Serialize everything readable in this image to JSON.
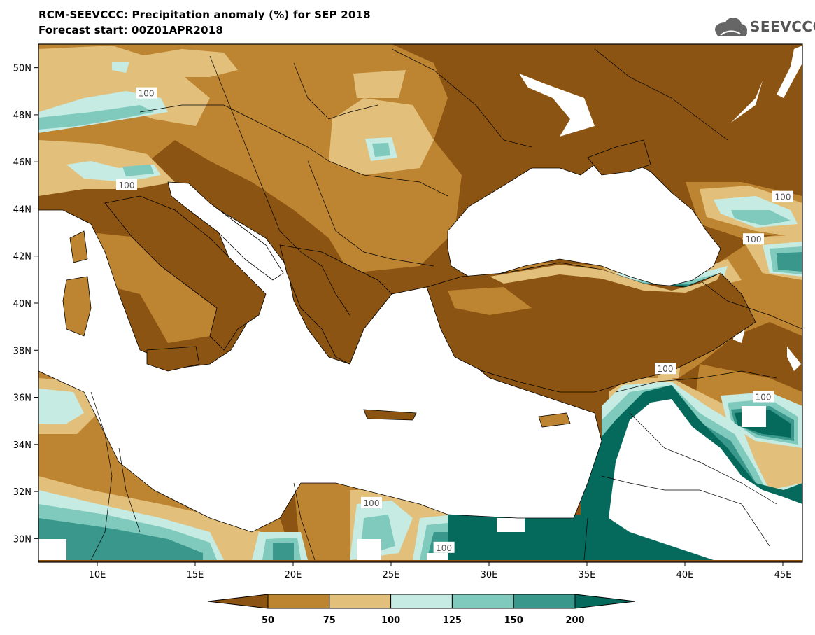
{
  "header": {
    "title": "RCM-SEEVCCC: Precipitation anomaly (%) for SEP 2018",
    "subtitle": "Forecast start: 00Z01APR2018"
  },
  "logo": {
    "text": "SEEVCCC",
    "icon": "cloud-icon"
  },
  "map": {
    "lat_labels": [
      "50N",
      "48N",
      "46N",
      "44N",
      "42N",
      "40N",
      "38N",
      "36N",
      "34N",
      "32N",
      "30N"
    ],
    "lat_values": [
      50,
      48,
      46,
      44,
      42,
      40,
      38,
      36,
      34,
      32,
      30
    ],
    "lon_labels": [
      "10E",
      "15E",
      "20E",
      "25E",
      "30E",
      "35E",
      "40E",
      "45E"
    ],
    "lon_values": [
      10,
      15,
      20,
      25,
      30,
      35,
      40,
      45
    ],
    "contour_label": "100",
    "contour_label_positions_deg": [
      [
        12.5,
        48.9
      ],
      [
        11.5,
        45.0
      ],
      [
        45.0,
        44.5
      ],
      [
        43.5,
        42.7
      ],
      [
        39.0,
        37.2
      ],
      [
        44.0,
        36.0
      ],
      [
        24.0,
        31.5
      ],
      [
        27.7,
        29.6
      ]
    ]
  },
  "colorbar": {
    "ticks": [
      "50",
      "75",
      "100",
      "125",
      "150",
      "200"
    ],
    "colors": [
      "#8c5412",
      "#bd8532",
      "#e2c07c",
      "#c6ebe3",
      "#7fcabc",
      "#3a978c",
      "#056a5c"
    ]
  },
  "palette": {
    "ocean": "#ffffff",
    "bin_lt50": "#8c5412",
    "bin_50_75": "#bd8532",
    "bin_75_100": "#e2c07c",
    "bin_100_125": "#c6ebe3",
    "bin_125_150": "#7fcabc",
    "bin_150_200": "#3a978c",
    "bin_gt200": "#056a5c"
  }
}
